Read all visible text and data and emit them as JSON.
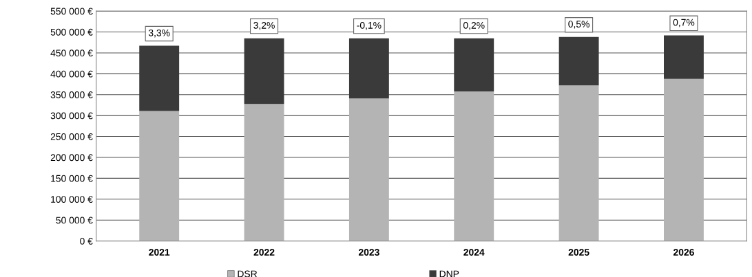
{
  "chart_data": {
    "type": "bar",
    "stacked": true,
    "categories": [
      "2021",
      "2022",
      "2023",
      "2024",
      "2025",
      "2026"
    ],
    "series": [
      {
        "name": "DSR",
        "color": "#b4b4b4",
        "values": [
          311000,
          328000,
          341000,
          358000,
          372000,
          388000
        ]
      },
      {
        "name": "DNP",
        "color": "#3a3a3a",
        "values": [
          156000,
          157000,
          144000,
          127000,
          116000,
          104000
        ]
      }
    ],
    "annotations": [
      {
        "text": "3,3%",
        "x": "2021",
        "y": 467000
      },
      {
        "text": "3,2%",
        "x": "2022",
        "y": 485000
      },
      {
        "text": "-0,1%",
        "x": "2023",
        "y": 485000
      },
      {
        "text": "0,2%",
        "x": "2024",
        "y": 485000
      },
      {
        "text": "0,5%",
        "x": "2025",
        "y": 488000
      },
      {
        "text": "0,7%",
        "x": "2026",
        "y": 492000
      }
    ],
    "ylim": [
      0,
      550000
    ],
    "yticks": [
      {
        "value": 0,
        "label": "0 €"
      },
      {
        "value": 50000,
        "label": "50 000 €"
      },
      {
        "value": 100000,
        "label": "100 000 €"
      },
      {
        "value": 150000,
        "label": "150 000 €"
      },
      {
        "value": 200000,
        "label": "200 000 €"
      },
      {
        "value": 250000,
        "label": "250 000 €"
      },
      {
        "value": 300000,
        "label": "300 000 €"
      },
      {
        "value": 350000,
        "label": "350 000 €"
      },
      {
        "value": 400000,
        "label": "400 000 €"
      },
      {
        "value": 450000,
        "label": "450 000 €"
      },
      {
        "value": 500000,
        "label": "500 000 €"
      },
      {
        "value": 550000,
        "label": "550 000 €"
      }
    ],
    "grid": "y",
    "legend": "bottom"
  }
}
